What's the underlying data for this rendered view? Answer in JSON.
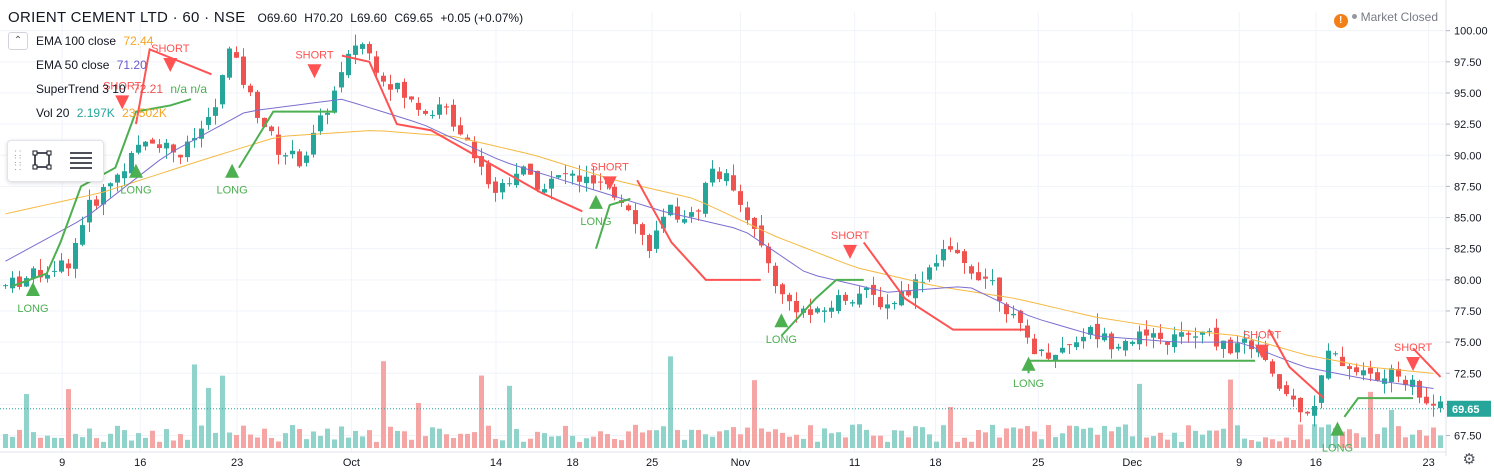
{
  "header": {
    "title": "ORIENT CEMENT LTD · 60 · NSE",
    "open": "O69.60",
    "high": "H70.20",
    "low": "L69.60",
    "close": "C69.65",
    "change": "+0.05 (+0.07%)",
    "collapse_icon": "chevron-up-icon"
  },
  "indicators": [
    {
      "label": "EMA 100 close",
      "value": "72.44",
      "color": "#f5a623"
    },
    {
      "label": "EMA 50 close",
      "value": "71.20",
      "color": "#6a5acd"
    },
    {
      "label": "SuperTrend 3 10",
      "value": "72.21",
      "extra": "n/a  n/a",
      "color": "#ef5350"
    },
    {
      "label": "Vol 20",
      "value": "2.197K",
      "extra": "23.502K",
      "color": "#26a69a",
      "extra_color": "#f5a623"
    }
  ],
  "status": {
    "market": "Market Closed",
    "alert_icon": "warning-icon",
    "settings_icon": "gear-icon"
  },
  "toolbar": {
    "tools": [
      "grip-icon",
      "rectangle-tool-icon",
      "object-tree-icon"
    ]
  },
  "colors": {
    "up": "#26a69a",
    "down": "#ef5350",
    "vol_up": "#8fd3cb",
    "vol_down": "#f5a5a3",
    "ema100": "#f5b942",
    "ema50": "#7b6fd0",
    "st_bull": "#4caf50",
    "st_bear": "#ff5252",
    "price_label": "#26a69a",
    "grid": "#f0f3fa",
    "axis_text": "#131722"
  },
  "chart_data": {
    "type": "candlestick",
    "y_ticks": [
      "67.50",
      "70.00",
      "72.50",
      "75.00",
      "77.50",
      "80.00",
      "82.50",
      "85.00",
      "87.50",
      "90.00",
      "92.50",
      "95.00",
      "97.50",
      "100.00"
    ],
    "ylim": [
      66.5,
      101.5
    ],
    "x_ticks": [
      "9",
      "16",
      "23",
      "Oct",
      "14",
      "18",
      "25",
      "Nov",
      "11",
      "18",
      "25",
      "Dec",
      "9",
      "16",
      "23"
    ],
    "last_price": "69.65",
    "price_path": [
      [
        0,
        79.5
      ],
      [
        4,
        80.5
      ],
      [
        8,
        81.5
      ],
      [
        10,
        85.5
      ],
      [
        14,
        88.5
      ],
      [
        18,
        91.5
      ],
      [
        22,
        90.0
      ],
      [
        26,
        93.5
      ],
      [
        28,
        98.5
      ],
      [
        31,
        94.0
      ],
      [
        34,
        90.5
      ],
      [
        37,
        89.5
      ],
      [
        41,
        95.0
      ],
      [
        44,
        99.5
      ],
      [
        47,
        96.5
      ],
      [
        51,
        94.0
      ],
      [
        55,
        93.5
      ],
      [
        58,
        91.0
      ],
      [
        61,
        87.0
      ],
      [
        64,
        89.0
      ],
      [
        67,
        87.5
      ],
      [
        70,
        88.5
      ],
      [
        74,
        87.5
      ],
      [
        78,
        86.0
      ],
      [
        80,
        82.5
      ],
      [
        83,
        85.5
      ],
      [
        86,
        85.0
      ],
      [
        88,
        89.0
      ],
      [
        91,
        87.5
      ],
      [
        94,
        83.0
      ],
      [
        97,
        78.5
      ],
      [
        101,
        77.0
      ],
      [
        104,
        78.5
      ],
      [
        107,
        79.0
      ],
      [
        110,
        78.0
      ],
      [
        114,
        80.0
      ],
      [
        117,
        82.5
      ],
      [
        120,
        81.0
      ],
      [
        123,
        80.0
      ],
      [
        126,
        76.5
      ],
      [
        129,
        74.0
      ],
      [
        132,
        74.5
      ],
      [
        135,
        76.0
      ],
      [
        138,
        75.0
      ],
      [
        141,
        75.5
      ],
      [
        144,
        75.0
      ],
      [
        147,
        75.5
      ],
      [
        150,
        75.5
      ],
      [
        153,
        74.5
      ],
      [
        156,
        75.0
      ],
      [
        158,
        72.0
      ],
      [
        161,
        70.0
      ],
      [
        163,
        69.5
      ],
      [
        165,
        74.0
      ],
      [
        168,
        73.0
      ],
      [
        171,
        72.0
      ],
      [
        174,
        72.5
      ],
      [
        177,
        70.5
      ],
      [
        179,
        69.65
      ]
    ],
    "ema100_path": [
      [
        0,
        85.3
      ],
      [
        12,
        87.0
      ],
      [
        24,
        89.5
      ],
      [
        34,
        91.5
      ],
      [
        46,
        92.0
      ],
      [
        56,
        91.5
      ],
      [
        66,
        90.0
      ],
      [
        76,
        88.0
      ],
      [
        86,
        86.5
      ],
      [
        96,
        83.5
      ],
      [
        106,
        81.0
      ],
      [
        116,
        79.5
      ],
      [
        126,
        78.5
      ],
      [
        136,
        77.0
      ],
      [
        146,
        76.0
      ],
      [
        154,
        75.5
      ],
      [
        162,
        74.0
      ],
      [
        170,
        73.0
      ],
      [
        179,
        72.44
      ]
    ],
    "ema50_path": [
      [
        0,
        81.5
      ],
      [
        10,
        85.0
      ],
      [
        20,
        90.0
      ],
      [
        30,
        93.5
      ],
      [
        42,
        94.5
      ],
      [
        52,
        92.5
      ],
      [
        62,
        89.5
      ],
      [
        72,
        87.5
      ],
      [
        82,
        85.5
      ],
      [
        92,
        84.0
      ],
      [
        100,
        80.5
      ],
      [
        110,
        79.0
      ],
      [
        120,
        79.5
      ],
      [
        128,
        77.0
      ],
      [
        136,
        75.5
      ],
      [
        146,
        75.0
      ],
      [
        154,
        75.0
      ],
      [
        162,
        73.0
      ],
      [
        170,
        72.0
      ],
      [
        179,
        71.2
      ]
    ],
    "supertrend_bull": [
      [
        [
          1,
          79.5
        ],
        [
          6,
          80.5
        ],
        [
          8,
          83.0
        ],
        [
          11,
          87.5
        ],
        [
          16,
          89.0
        ],
        [
          19,
          93.5
        ],
        [
          24,
          94.0
        ],
        [
          27,
          94.5
        ]
      ],
      [
        [
          34,
          89.0
        ],
        [
          39,
          93.5
        ],
        [
          48,
          93.5
        ]
      ],
      [
        [
          86,
          82.5
        ],
        [
          88,
          86.0
        ],
        [
          91,
          86.5
        ]
      ],
      [
        [
          113,
          75.5
        ],
        [
          118,
          78.5
        ],
        [
          121,
          80.0
        ],
        [
          125,
          80.0
        ]
      ],
      [
        [
          149,
          72.5
        ],
        [
          149,
          73.5
        ],
        [
          182,
          73.5
        ]
      ],
      [
        [
          195,
          69.0
        ],
        [
          197,
          70.5
        ],
        [
          205,
          70.5
        ]
      ]
    ],
    "supertrend_bear": [
      [
        [
          19,
          92.5
        ],
        [
          21,
          98.5
        ],
        [
          30,
          96.5
        ]
      ],
      [
        [
          49,
          98.0
        ],
        [
          53,
          97.5
        ],
        [
          57,
          92.5
        ],
        [
          62,
          92.0
        ],
        [
          70,
          89.5
        ],
        [
          78,
          87.0
        ],
        [
          84,
          85.5
        ]
      ],
      [
        [
          92,
          88.0
        ],
        [
          97,
          83.0
        ],
        [
          102,
          80.0
        ],
        [
          110,
          80.0
        ]
      ],
      [
        [
          125,
          83.0
        ],
        [
          131,
          78.5
        ],
        [
          138,
          76.0
        ],
        [
          149,
          76.0
        ]
      ],
      [
        [
          184,
          76.0
        ],
        [
          187,
          73.0
        ],
        [
          192,
          70.5
        ]
      ],
      [
        [
          205,
          74.5
        ],
        [
          209,
          72.2
        ]
      ]
    ],
    "signals": [
      {
        "type": "LONG",
        "x": 4,
        "y": 79.5,
        "label": "LONG"
      },
      {
        "type": "SHORT",
        "x": 17,
        "y": 94.0,
        "label": "SHORT"
      },
      {
        "type": "LONG",
        "x": 19,
        "y": 89.0,
        "label": "LONG"
      },
      {
        "type": "SHORT",
        "x": 24,
        "y": 97.0,
        "label": "SHORT"
      },
      {
        "type": "LONG",
        "x": 33,
        "y": 89.0,
        "label": "LONG"
      },
      {
        "type": "SHORT",
        "x": 45,
        "y": 96.5,
        "label": "SHORT"
      },
      {
        "type": "LONG",
        "x": 86,
        "y": 86.5,
        "label": "LONG"
      },
      {
        "type": "SHORT",
        "x": 88,
        "y": 87.5,
        "label": "SHORT"
      },
      {
        "type": "LONG",
        "x": 113,
        "y": 77.0,
        "label": "LONG"
      },
      {
        "type": "SHORT",
        "x": 123,
        "y": 82.0,
        "label": "SHORT"
      },
      {
        "type": "LONG",
        "x": 149,
        "y": 73.5,
        "label": "LONG"
      },
      {
        "type": "SHORT",
        "x": 183,
        "y": 74.0,
        "label": "SHORT"
      },
      {
        "type": "LONG",
        "x": 194,
        "y": 68.3,
        "label": "LONG"
      },
      {
        "type": "SHORT",
        "x": 205,
        "y": 73.0,
        "label": "SHORT"
      }
    ]
  }
}
